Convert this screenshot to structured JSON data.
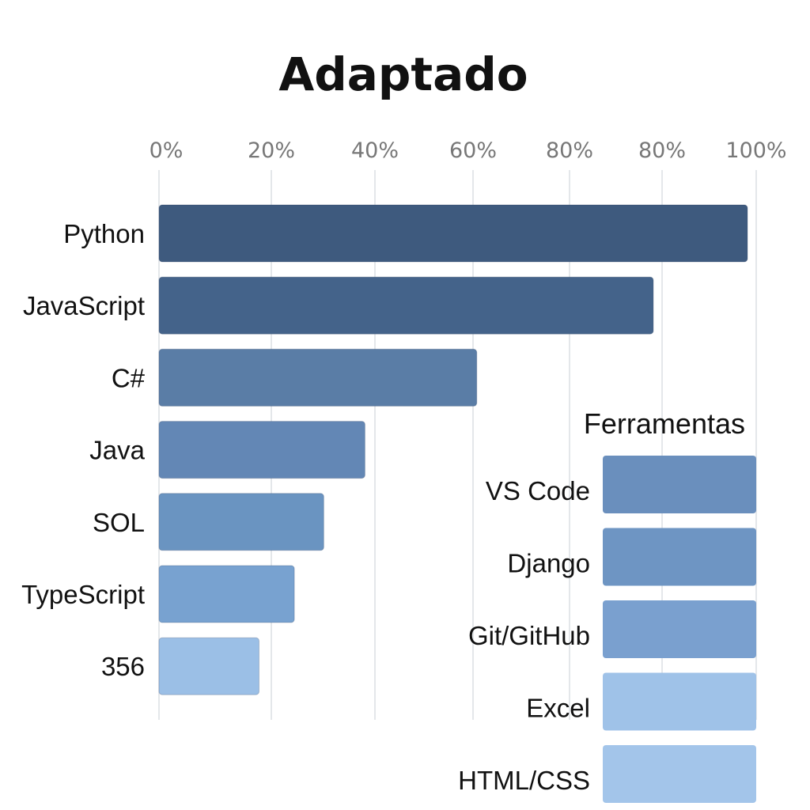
{
  "chart_data": [
    {
      "type": "bar",
      "orientation": "horizontal",
      "title": "Adaptado",
      "x_ticks": [
        "0%",
        "20%",
        "40%",
        "60%",
        "80%",
        "80%",
        "100%"
      ],
      "xlim": [
        0,
        100
      ],
      "grid": true,
      "categories": [
        "Python",
        "JavaScript",
        "C#",
        "Java",
        "SOL",
        "TypeScript",
        "356"
      ],
      "values": [
        100,
        84,
        54,
        35,
        28,
        23,
        17
      ],
      "colors": [
        "#3e5a7e",
        "#44638a",
        "#5a7da6",
        "#6387b5",
        "#6a94c1",
        "#78a2d0",
        "#9bbfe6"
      ]
    },
    {
      "type": "bar",
      "orientation": "horizontal",
      "title": "Ferramentas",
      "categories": [
        "VS Code",
        "Django",
        "Git/GitHub",
        "Excel",
        "HTML/CSS"
      ],
      "values": [
        100,
        100,
        100,
        100,
        100
      ],
      "colors": [
        "#6a8fbd",
        "#6e95c3",
        "#7aa0cf",
        "#9fc2e8",
        "#a3c5ea"
      ]
    }
  ]
}
